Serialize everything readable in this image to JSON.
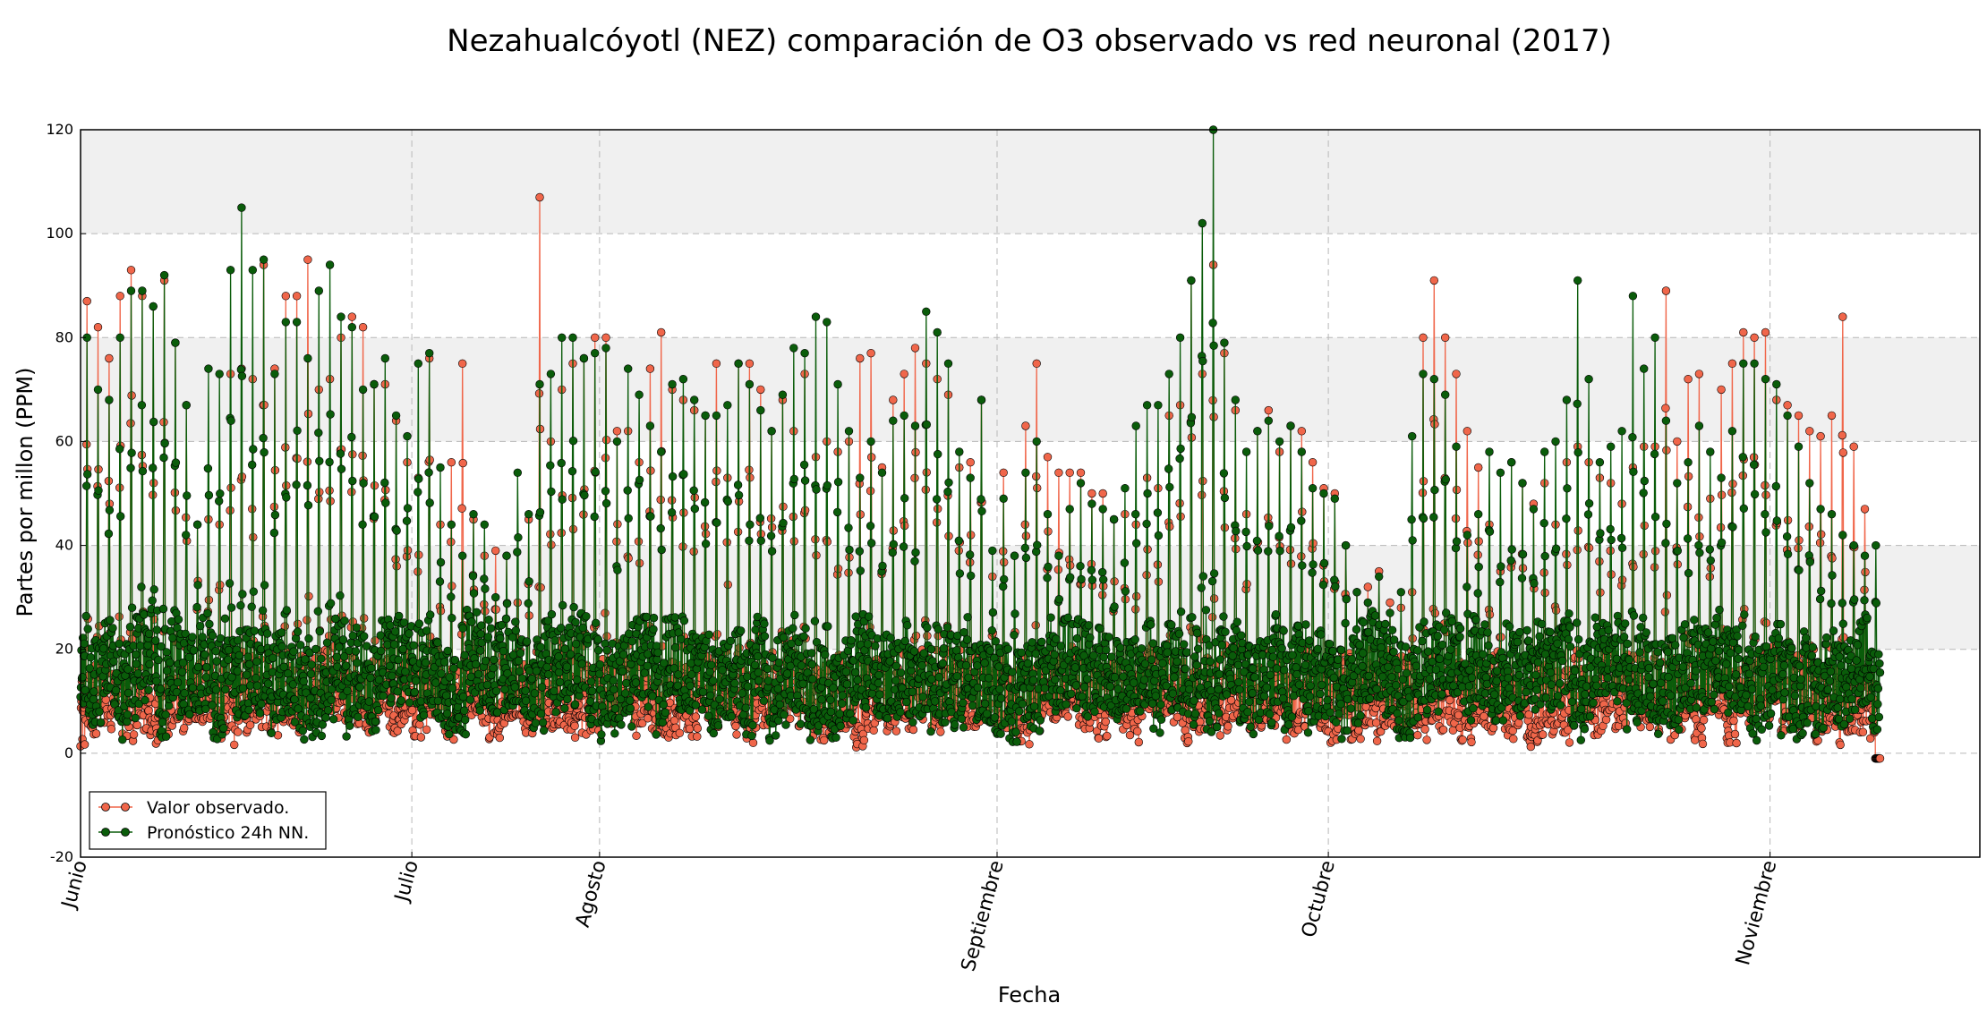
{
  "chart_data": {
    "type": "line",
    "title": "Nezahualcóyotl (NEZ) comparación de O3 observado vs red neuronal (2017)",
    "xlabel": "Fecha",
    "ylabel": "Partes por millon (PPM)",
    "ylim": [
      -20,
      120
    ],
    "yticks": [
      -20,
      0,
      20,
      40,
      60,
      80,
      100,
      120
    ],
    "xlim": [
      "2017-06-01",
      "2017-11-20"
    ],
    "xticks": [
      {
        "label": "Junio",
        "date": "2017-06-01"
      },
      {
        "label": "Julio",
        "date": "2017-07-01"
      },
      {
        "label": "Agosto",
        "date": "2017-07-18"
      },
      {
        "label": "Septiembre",
        "date": "2017-08-23"
      },
      {
        "label": "Octubre",
        "date": "2017-09-22"
      },
      {
        "label": "Noviembre",
        "date": "2017-11-01"
      }
    ],
    "grid": true,
    "background_bands": [
      [
        20,
        40
      ],
      [
        60,
        80
      ],
      [
        100,
        120
      ]
    ],
    "legend_position": "lower-left",
    "series": [
      {
        "name": "Valor observado.",
        "color": "#f0664a",
        "daily_max": [
          87,
          82,
          76,
          88,
          93,
          88,
          86,
          91,
          79,
          67,
          44,
          45,
          44,
          73,
          74,
          72,
          94,
          74,
          88,
          88,
          95,
          70,
          72,
          80,
          84,
          82,
          71,
          71,
          64,
          56,
          53,
          76,
          44,
          56,
          75,
          45,
          38,
          39,
          38,
          29,
          45,
          107,
          60,
          70,
          75,
          76,
          80,
          80,
          62,
          62,
          56,
          74,
          81,
          70,
          68,
          66,
          65,
          75,
          53,
          75,
          75,
          70,
          62,
          68,
          62,
          73,
          57,
          60,
          58,
          60,
          76,
          77,
          55,
          68,
          73,
          78,
          75,
          72,
          69,
          55,
          56,
          68,
          34,
          54,
          38,
          63,
          75,
          57,
          54,
          54,
          54,
          50,
          50,
          45,
          46,
          44,
          53,
          51,
          65,
          67,
          91,
          73,
          94,
          77,
          66,
          46,
          62,
          66,
          58,
          63,
          62,
          56,
          51,
          50,
          40,
          31,
          32,
          35,
          29,
          28,
          31,
          80,
          91,
          80,
          73,
          62,
          55,
          44,
          35,
          56,
          52,
          48,
          52,
          44,
          56,
          59,
          56,
          53,
          52,
          48,
          55,
          59,
          59,
          89,
          60,
          72,
          73,
          49,
          70,
          75,
          81,
          80,
          81,
          68,
          67,
          65,
          62,
          61,
          65,
          84,
          59,
          47,
          42
        ]
      },
      {
        "name": "Pronóstico 24h NN.",
        "color": "#0a5c0a",
        "daily_max": [
          80,
          70,
          68,
          80,
          89,
          89,
          86,
          92,
          79,
          67,
          44,
          74,
          73,
          93,
          105,
          93,
          95,
          73,
          83,
          83,
          76,
          89,
          94,
          84,
          82,
          70,
          71,
          76,
          65,
          61,
          75,
          77,
          55,
          44,
          38,
          46,
          44,
          30,
          38,
          54,
          46,
          71,
          73,
          80,
          80,
          76,
          77,
          78,
          60,
          74,
          69,
          63,
          58,
          71,
          72,
          68,
          65,
          65,
          67,
          75,
          71,
          66,
          62,
          69,
          78,
          77,
          84,
          83,
          71,
          62,
          53,
          60,
          54,
          64,
          65,
          63,
          85,
          81,
          75,
          58,
          53,
          68,
          39,
          49,
          38,
          54,
          60,
          46,
          38,
          47,
          52,
          48,
          47,
          45,
          51,
          63,
          67,
          67,
          73,
          80,
          91,
          102,
          120,
          79,
          68,
          58,
          62,
          64,
          60,
          63,
          58,
          51,
          50,
          49,
          40,
          31,
          29,
          34,
          27,
          31,
          61,
          73,
          72,
          69,
          59,
          42,
          46,
          58,
          54,
          56,
          52,
          47,
          58,
          60,
          68,
          91,
          72,
          56,
          59,
          62,
          88,
          74,
          80,
          64,
          52,
          56,
          63,
          58,
          53,
          62,
          75,
          75,
          72,
          71,
          65,
          59,
          52,
          47,
          46,
          42,
          40,
          38,
          40
        ]
      }
    ]
  }
}
